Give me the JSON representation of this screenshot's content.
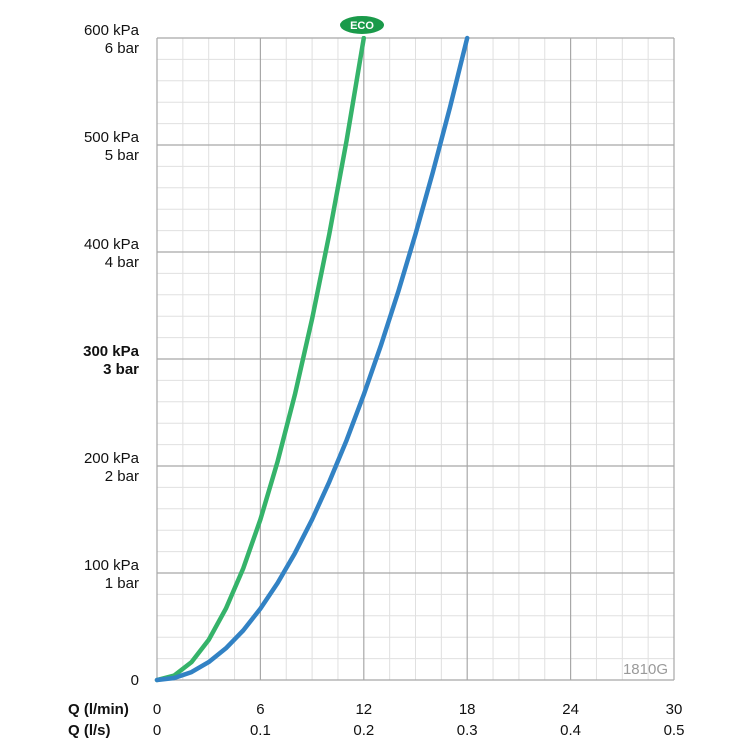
{
  "chart_data": {
    "type": "line",
    "x_axis_primary": {
      "label": "Q (l/min)",
      "ticks": [
        "0",
        "6",
        "12",
        "18",
        "24",
        "30"
      ],
      "range": [
        0,
        30
      ]
    },
    "x_axis_secondary": {
      "label": "Q (l/s)",
      "ticks": [
        "0",
        "0.1",
        "0.2",
        "0.3",
        "0.4",
        "0.5"
      ],
      "range": [
        0,
        0.5
      ]
    },
    "y_axis": {
      "range": [
        0,
        600
      ],
      "ticks": [
        {
          "value": 0,
          "line1": "0",
          "line2": "",
          "bold": false
        },
        {
          "value": 100,
          "line1": "100 kPa",
          "line2": "1 bar",
          "bold": false
        },
        {
          "value": 200,
          "line1": "200 kPa",
          "line2": "2 bar",
          "bold": false
        },
        {
          "value": 300,
          "line1": "300 kPa",
          "line2": "3 bar",
          "bold": true
        },
        {
          "value": 400,
          "line1": "400 kPa",
          "line2": "4 bar",
          "bold": false
        },
        {
          "value": 500,
          "line1": "500 kPa",
          "line2": "5 bar",
          "bold": false
        },
        {
          "value": 600,
          "line1": "600 kPa",
          "line2": "6 bar",
          "bold": false
        }
      ]
    },
    "grid": true,
    "minor_grid": true,
    "series": [
      {
        "color": "#35b36a",
        "x": [
          0,
          1,
          2,
          3,
          4,
          5,
          6,
          7,
          8,
          9,
          10,
          11,
          12
        ],
        "y": [
          0,
          4.2,
          16.7,
          37.5,
          66.7,
          104.2,
          150,
          204.2,
          266.7,
          337.5,
          416.7,
          504.2,
          600
        ],
        "badge": "ECO"
      },
      {
        "color": "#3282c4",
        "x": [
          0,
          1,
          2,
          3,
          4,
          5,
          6,
          7,
          8,
          9,
          10,
          11,
          12,
          13,
          14,
          15,
          16,
          17,
          18
        ],
        "y": [
          0,
          1.9,
          7.4,
          16.7,
          29.6,
          46.3,
          66.7,
          90.7,
          118.5,
          150,
          185.2,
          224.1,
          266.7,
          313,
          363,
          416.7,
          474.1,
          535.2,
          600
        ]
      }
    ],
    "model_code": "1810G"
  }
}
